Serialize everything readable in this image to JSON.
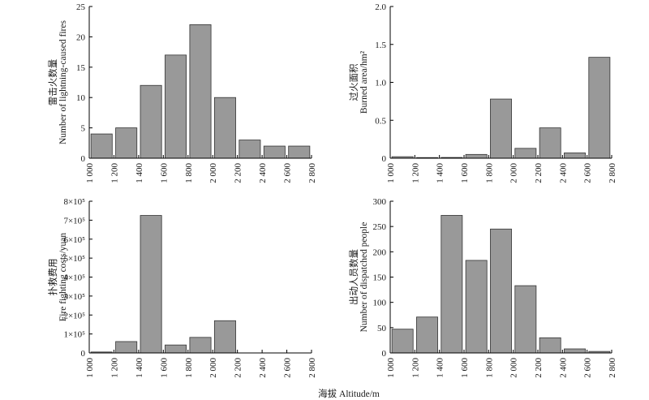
{
  "figure": {
    "xlabel": "海拔 Altitude/m",
    "bar_color": "#999999",
    "axis_color": "#000000"
  },
  "chart_data": [
    {
      "type": "bar",
      "x_bin_edges": [
        1000,
        1200,
        1400,
        1600,
        1800,
        2000,
        2200,
        2400,
        2600,
        2800
      ],
      "x_tick_labels": [
        "1 000",
        "1 200",
        "1 400",
        "1 600",
        "1 800",
        "2 000",
        "2 200",
        "2 400",
        "2 600",
        "2 800"
      ],
      "bar_centers": [
        1100,
        1300,
        1500,
        1700,
        1900,
        2100,
        2300,
        2500,
        2700
      ],
      "values": [
        4,
        5,
        12,
        17,
        22,
        10,
        3,
        2,
        2
      ],
      "ylim": [
        0,
        25
      ],
      "y_ticks": [
        0,
        5,
        10,
        15,
        20,
        25
      ],
      "y_tick_labels": [
        "0",
        "5",
        "10",
        "15",
        "20",
        "25"
      ],
      "ylabel_cn": "雷击火数量",
      "ylabel_en": "Number of lightning-caused fires",
      "grid": false
    },
    {
      "type": "bar",
      "x_bin_edges": [
        1000,
        1200,
        1400,
        1600,
        1800,
        2000,
        2200,
        2400,
        2600,
        2800
      ],
      "x_tick_labels": [
        "1 000",
        "1 200",
        "1 400",
        "1 600",
        "1 800",
        "2 000",
        "2 200",
        "2 400",
        "2 600",
        "2 800"
      ],
      "bar_centers": [
        1100,
        1300,
        1500,
        1700,
        1900,
        2100,
        2300,
        2500,
        2700
      ],
      "values": [
        0.02,
        0.005,
        0.01,
        0.05,
        0.78,
        0.13,
        0.4,
        0.07,
        1.33
      ],
      "ylim": [
        0,
        2.0
      ],
      "y_ticks": [
        0,
        0.5,
        1.0,
        1.5,
        2.0
      ],
      "y_tick_labels": [
        "0",
        "0.5",
        "1.0",
        "1.5",
        "2.0"
      ],
      "ylabel_cn": "过火面积",
      "ylabel_en": "Burned area/hm²",
      "grid": false
    },
    {
      "type": "bar",
      "x_bin_edges": [
        1000,
        1200,
        1400,
        1600,
        1800,
        2000,
        2200,
        2400,
        2600,
        2800
      ],
      "x_tick_labels": [
        "1 000",
        "1 200",
        "1 400",
        "1 600",
        "1 800",
        "2 000",
        "2 200",
        "2 400",
        "2 600",
        "2 800"
      ],
      "bar_centers": [
        1100,
        1300,
        1500,
        1700,
        1900,
        2100,
        2300,
        2500,
        2700
      ],
      "values": [
        5000,
        60000,
        725000,
        42000,
        82000,
        170000,
        0,
        0,
        0
      ],
      "ylim": [
        0,
        800000
      ],
      "y_ticks": [
        0,
        100000,
        200000,
        300000,
        400000,
        500000,
        600000,
        700000,
        800000
      ],
      "y_tick_labels": [
        "0",
        "1×10⁵",
        "2×10⁵",
        "3×10⁵",
        "4×10⁵",
        "5×10⁵",
        "6×10⁵",
        "7×10⁵",
        "8×10⁵"
      ],
      "ylabel_cn": "扑救费用",
      "ylabel_en": "Fire fighting costs/yuan",
      "grid": false
    },
    {
      "type": "bar",
      "x_bin_edges": [
        1000,
        1200,
        1400,
        1600,
        1800,
        2000,
        2200,
        2400,
        2600,
        2800
      ],
      "x_tick_labels": [
        "1 000",
        "1 200",
        "1 400",
        "1 600",
        "1 800",
        "2 000",
        "2 200",
        "2 400",
        "2 600",
        "2 800"
      ],
      "bar_centers": [
        1100,
        1300,
        1500,
        1700,
        1900,
        2100,
        2300,
        2500,
        2700
      ],
      "values": [
        47,
        71,
        272,
        183,
        245,
        133,
        30,
        8,
        3
      ],
      "ylim": [
        0,
        300
      ],
      "y_ticks": [
        0,
        50,
        100,
        150,
        200,
        250,
        300
      ],
      "y_tick_labels": [
        "0",
        "50",
        "100",
        "150",
        "200",
        "250",
        "300"
      ],
      "ylabel_cn": "出动人员数量",
      "ylabel_en": "Number of dispatched people",
      "grid": false
    }
  ]
}
